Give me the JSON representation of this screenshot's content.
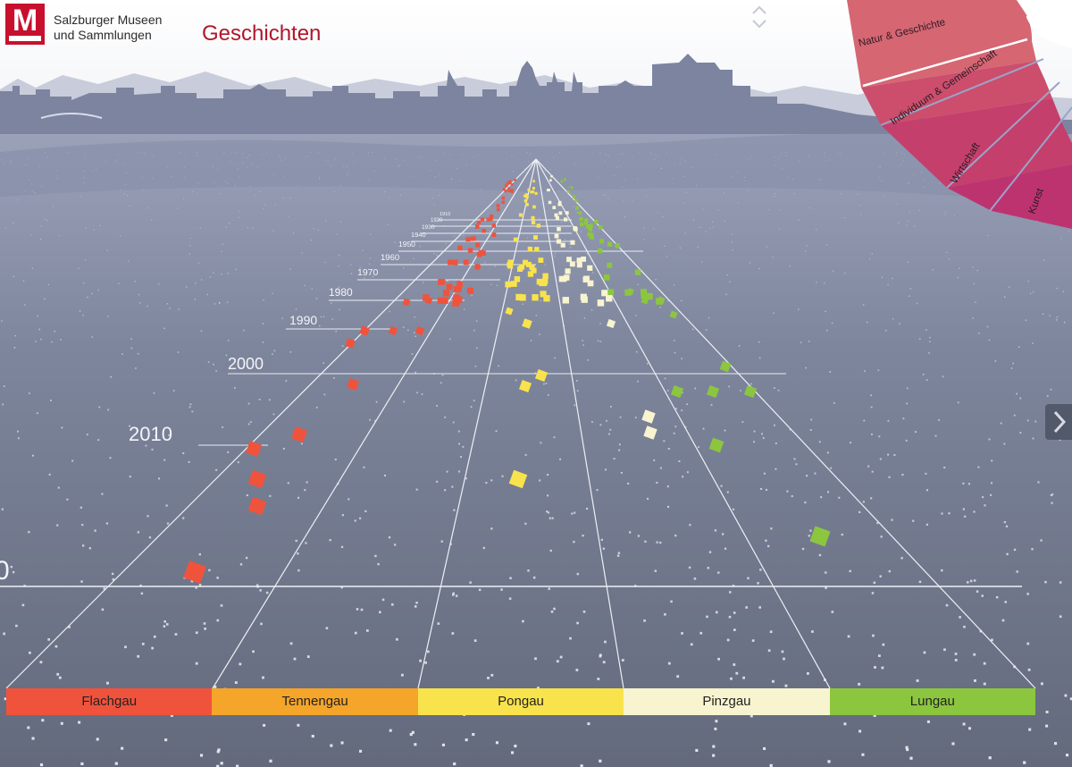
{
  "header": {
    "brand_line1": "Salzburger Museen",
    "brand_line2": "und Sammlungen",
    "title": "Geschichten"
  },
  "year_labels": [
    "2010",
    "2000",
    "1990",
    "1980",
    "1970",
    "1960",
    "1950",
    "1940",
    "1930",
    "1920",
    "1910"
  ],
  "regions": [
    {
      "name": "Flachgau",
      "color": "#f0533c"
    },
    {
      "name": "Tennengau",
      "color": "#f4a52a"
    },
    {
      "name": "Pongau",
      "color": "#f9e34c"
    },
    {
      "name": "Pinzgau",
      "color": "#f8f4cf"
    },
    {
      "name": "Lungau",
      "color": "#8cc63f"
    }
  ],
  "categories": [
    "Natur & Geschichte",
    "Individuum & Gemeinschaft",
    "Wirtschaft",
    "Kunst"
  ],
  "colors": {
    "brand_red": "#c8102e",
    "title_red": "#b0172a"
  }
}
